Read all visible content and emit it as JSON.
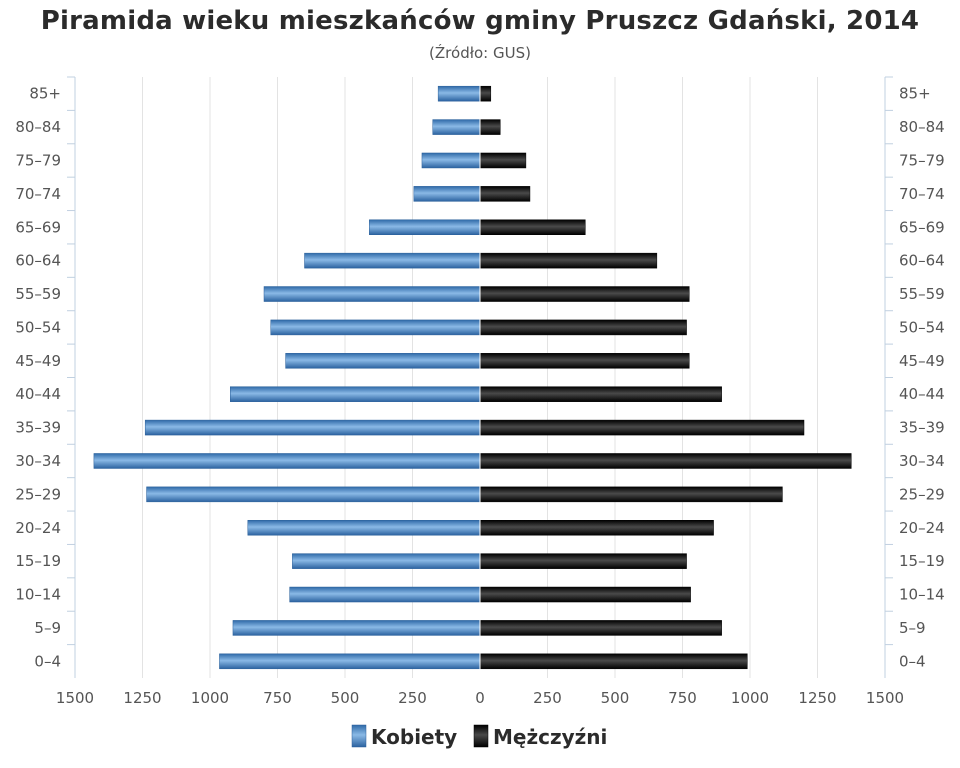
{
  "chart_data": {
    "type": "bar",
    "orientation": "horizontal",
    "title": "Piramida wieku mieszkańców gminy Pruszcz Gdański, 2014",
    "subtitle": "(Źródło: GUS)",
    "categories": [
      "85+",
      "80-84",
      "75-79",
      "70-74",
      "65-69",
      "60-64",
      "55-59",
      "50-54",
      "45-49",
      "40-44",
      "35-39",
      "30-34",
      "25-29",
      "20-24",
      "15-19",
      "10-14",
      "5-9",
      "0-4"
    ],
    "series": [
      {
        "name": "Kobiety",
        "side": "left",
        "color": "#4a87c4",
        "values": [
          155,
          175,
          215,
          245,
          410,
          650,
          800,
          775,
          720,
          925,
          1240,
          1430,
          1235,
          860,
          695,
          705,
          915,
          965
        ]
      },
      {
        "name": "Mężczyźni",
        "side": "right",
        "color": "#1a1a1a",
        "values": [
          40,
          75,
          170,
          185,
          390,
          655,
          775,
          765,
          775,
          895,
          1200,
          1375,
          1120,
          865,
          765,
          780,
          895,
          990
        ]
      }
    ],
    "x_ticks": [
      "1500",
      "1250",
      "1000",
      "750",
      "500",
      "250",
      "0",
      "250",
      "500",
      "750",
      "1000",
      "1250",
      "1500"
    ],
    "xlim": [
      -1500,
      1500
    ],
    "grid": true,
    "legend_position": "bottom-center"
  }
}
